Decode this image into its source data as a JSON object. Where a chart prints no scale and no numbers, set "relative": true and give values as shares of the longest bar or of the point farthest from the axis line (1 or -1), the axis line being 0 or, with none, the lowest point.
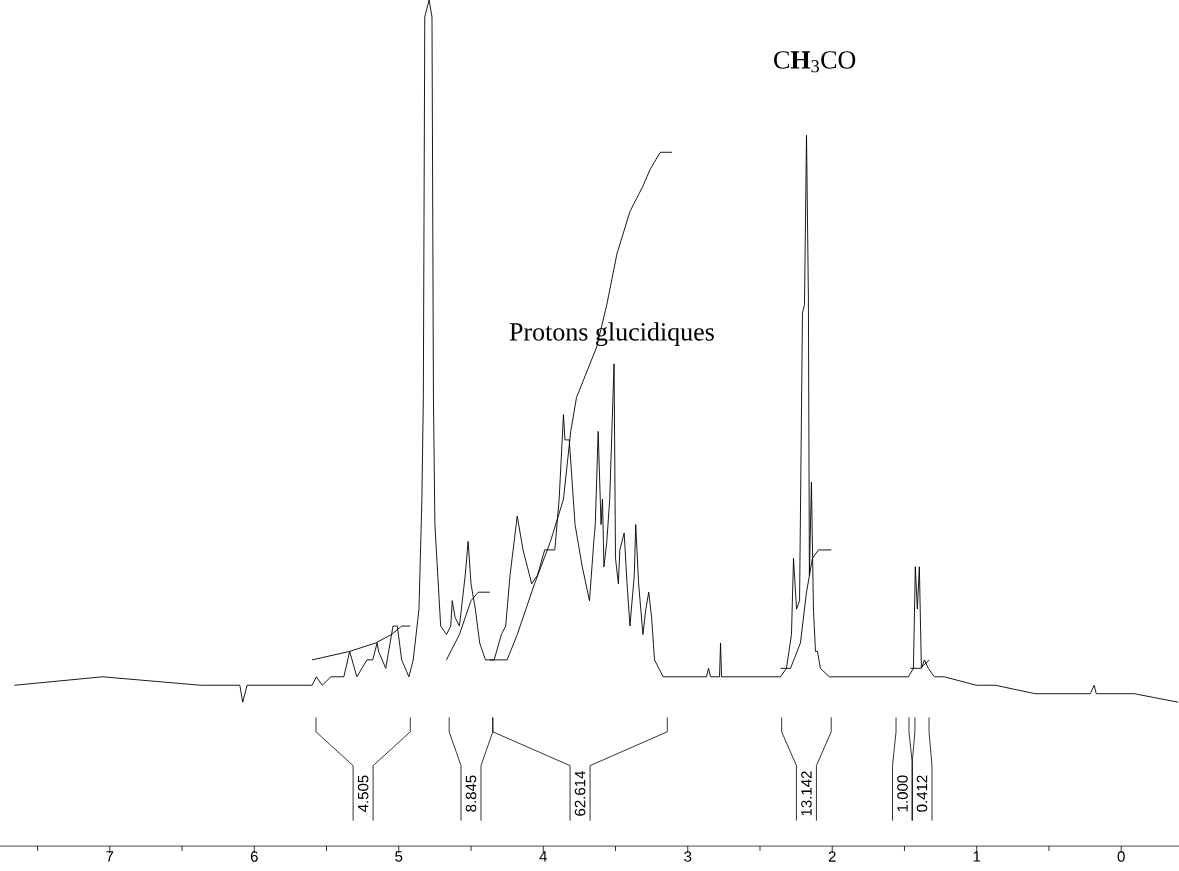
{
  "chart_data": {
    "type": "line",
    "relative": true,
    "tick_labels": "x",
    "xlim": [
      7.76,
      -0.4
    ],
    "xticks": [
      {
        "value": 7.5,
        "label": null
      },
      7,
      {
        "value": 6.5,
        "label": null
      },
      6,
      {
        "value": 5.5,
        "label": null
      },
      5,
      {
        "value": 4.5,
        "label": null
      },
      4,
      {
        "value": 3.5,
        "label": null
      },
      3,
      {
        "value": 2.5,
        "label": null
      },
      2,
      {
        "value": 1.5,
        "label": null
      },
      1,
      {
        "value": 0.5,
        "label": null
      },
      0
    ],
    "series": [
      {
        "color": "#000000",
        "x": [
          7.66,
          7.05,
          6.37,
          6.1,
          6.08,
          6.05,
          5.82,
          5.6,
          5.57,
          5.53,
          5.47,
          5.38,
          5.34,
          5.29,
          5.22,
          5.18,
          5.15,
          5.14,
          5.09,
          5.04,
          5.01,
          4.98,
          4.93,
          4.9,
          4.86,
          4.84,
          4.83,
          4.82,
          4.79,
          4.77,
          4.76,
          4.75,
          4.71,
          4.67,
          4.64,
          4.63,
          4.61,
          4.58,
          4.54,
          4.52,
          4.5,
          4.47,
          4.44,
          4.4,
          4.34,
          4.29,
          4.26,
          4.23,
          4.18,
          4.14,
          4.11,
          4.08,
          4.04,
          3.99,
          3.95,
          3.92,
          3.89,
          3.86,
          3.85,
          3.82,
          3.78,
          3.73,
          3.68,
          3.65,
          3.64,
          3.62,
          3.6,
          3.59,
          3.58,
          3.56,
          3.54,
          3.51,
          3.5,
          3.48,
          3.47,
          3.44,
          3.42,
          3.4,
          3.37,
          3.36,
          3.34,
          3.31,
          3.29,
          3.27,
          3.25,
          3.23,
          3.17,
          3.06,
          2.87,
          2.856,
          2.842,
          2.78,
          2.773,
          2.766,
          2.51,
          2.358,
          2.317,
          2.282,
          2.268,
          2.247,
          2.226,
          2.206,
          2.192,
          2.185,
          2.178,
          2.165,
          2.158,
          2.144,
          2.13,
          2.116,
          2.102,
          2.082,
          2.019,
          1.826,
          1.473,
          1.438,
          1.425,
          1.411,
          1.397,
          1.383,
          1.362,
          1.335,
          1.293,
          1.224,
          1.003,
          0.871,
          0.595,
          0.214,
          0.187,
          0.173,
          -0.09,
          -0.394
        ],
        "values": [
          0.19,
          0.2,
          0.19,
          0.19,
          0.17,
          0.19,
          0.19,
          0.19,
          0.2,
          0.19,
          0.2,
          0.2,
          0.23,
          0.2,
          0.22,
          0.22,
          0.24,
          0.23,
          0.21,
          0.26,
          0.26,
          0.22,
          0.2,
          0.22,
          0.28,
          0.41,
          0.53,
          0.98,
          1,
          0.98,
          0.53,
          0.38,
          0.26,
          0.25,
          0.26,
          0.29,
          0.27,
          0.26,
          0.32,
          0.36,
          0.31,
          0.28,
          0.24,
          0.22,
          0.22,
          0.25,
          0.26,
          0.32,
          0.39,
          0.35,
          0.33,
          0.31,
          0.32,
          0.35,
          0.35,
          0.35,
          0.41,
          0.51,
          0.48,
          0.48,
          0.38,
          0.33,
          0.29,
          0.36,
          0.38,
          0.49,
          0.38,
          0.41,
          0.33,
          0.36,
          0.41,
          0.57,
          0.34,
          0.31,
          0.35,
          0.37,
          0.31,
          0.26,
          0.32,
          0.38,
          0.31,
          0.25,
          0.28,
          0.3,
          0.27,
          0.22,
          0.2,
          0.2,
          0.2,
          0.21,
          0.2,
          0.2,
          0.24,
          0.2,
          0.2,
          0.2,
          0.21,
          0.25,
          0.34,
          0.28,
          0.29,
          0.63,
          0.64,
          0.74,
          0.84,
          0.65,
          0.32,
          0.43,
          0.28,
          0.23,
          0.23,
          0.21,
          0.2,
          0.2,
          0.2,
          0.21,
          0.33,
          0.28,
          0.33,
          0.21,
          0.22,
          0.21,
          0.2,
          0.2,
          0.19,
          0.19,
          0.18,
          0.18,
          0.19,
          0.18,
          0.18,
          0.17
        ]
      },
      {
        "color": "#000000",
        "x": [
          5.6,
          5.34,
          5.16,
          5.05,
          4.98,
          4.92
        ],
        "values": [
          0.22,
          0.23,
          0.24,
          0.25,
          0.26,
          0.26
        ]
      },
      {
        "color": "#000000",
        "x": [
          4.67,
          4.58,
          4.5,
          4.45,
          4.37
        ],
        "values": [
          0.22,
          0.25,
          0.29,
          0.3,
          0.3
        ]
      },
      {
        "color": "#000000",
        "x": [
          4.37,
          4.32,
          4.25,
          4.18,
          4.06,
          3.95,
          3.86,
          3.81,
          3.77,
          3.63,
          3.56,
          3.49,
          3.4,
          3.31,
          3.26,
          3.19,
          3.11
        ],
        "values": [
          0.22,
          0.22,
          0.22,
          0.25,
          0.31,
          0.36,
          0.41,
          0.49,
          0.53,
          0.59,
          0.64,
          0.7,
          0.75,
          0.78,
          0.8,
          0.82,
          0.82
        ]
      },
      {
        "color": "#000000",
        "x": [
          2.358,
          2.289,
          2.22,
          2.178,
          2.137,
          2.095,
          2.006
        ],
        "values": [
          0.21,
          0.21,
          0.24,
          0.3,
          0.34,
          0.35,
          0.35
        ]
      },
      {
        "color": "#000000",
        "x": [
          1.459,
          1.39,
          1.328
        ],
        "values": [
          0.21,
          0.21,
          0.22
        ]
      }
    ],
    "annotations": [
      "C**H**$_{3}$CO",
      "Protons glucidiques",
      "4.505",
      "8.845",
      "62.614",
      "13.142",
      "1.000",
      "0.412"
    ]
  }
}
